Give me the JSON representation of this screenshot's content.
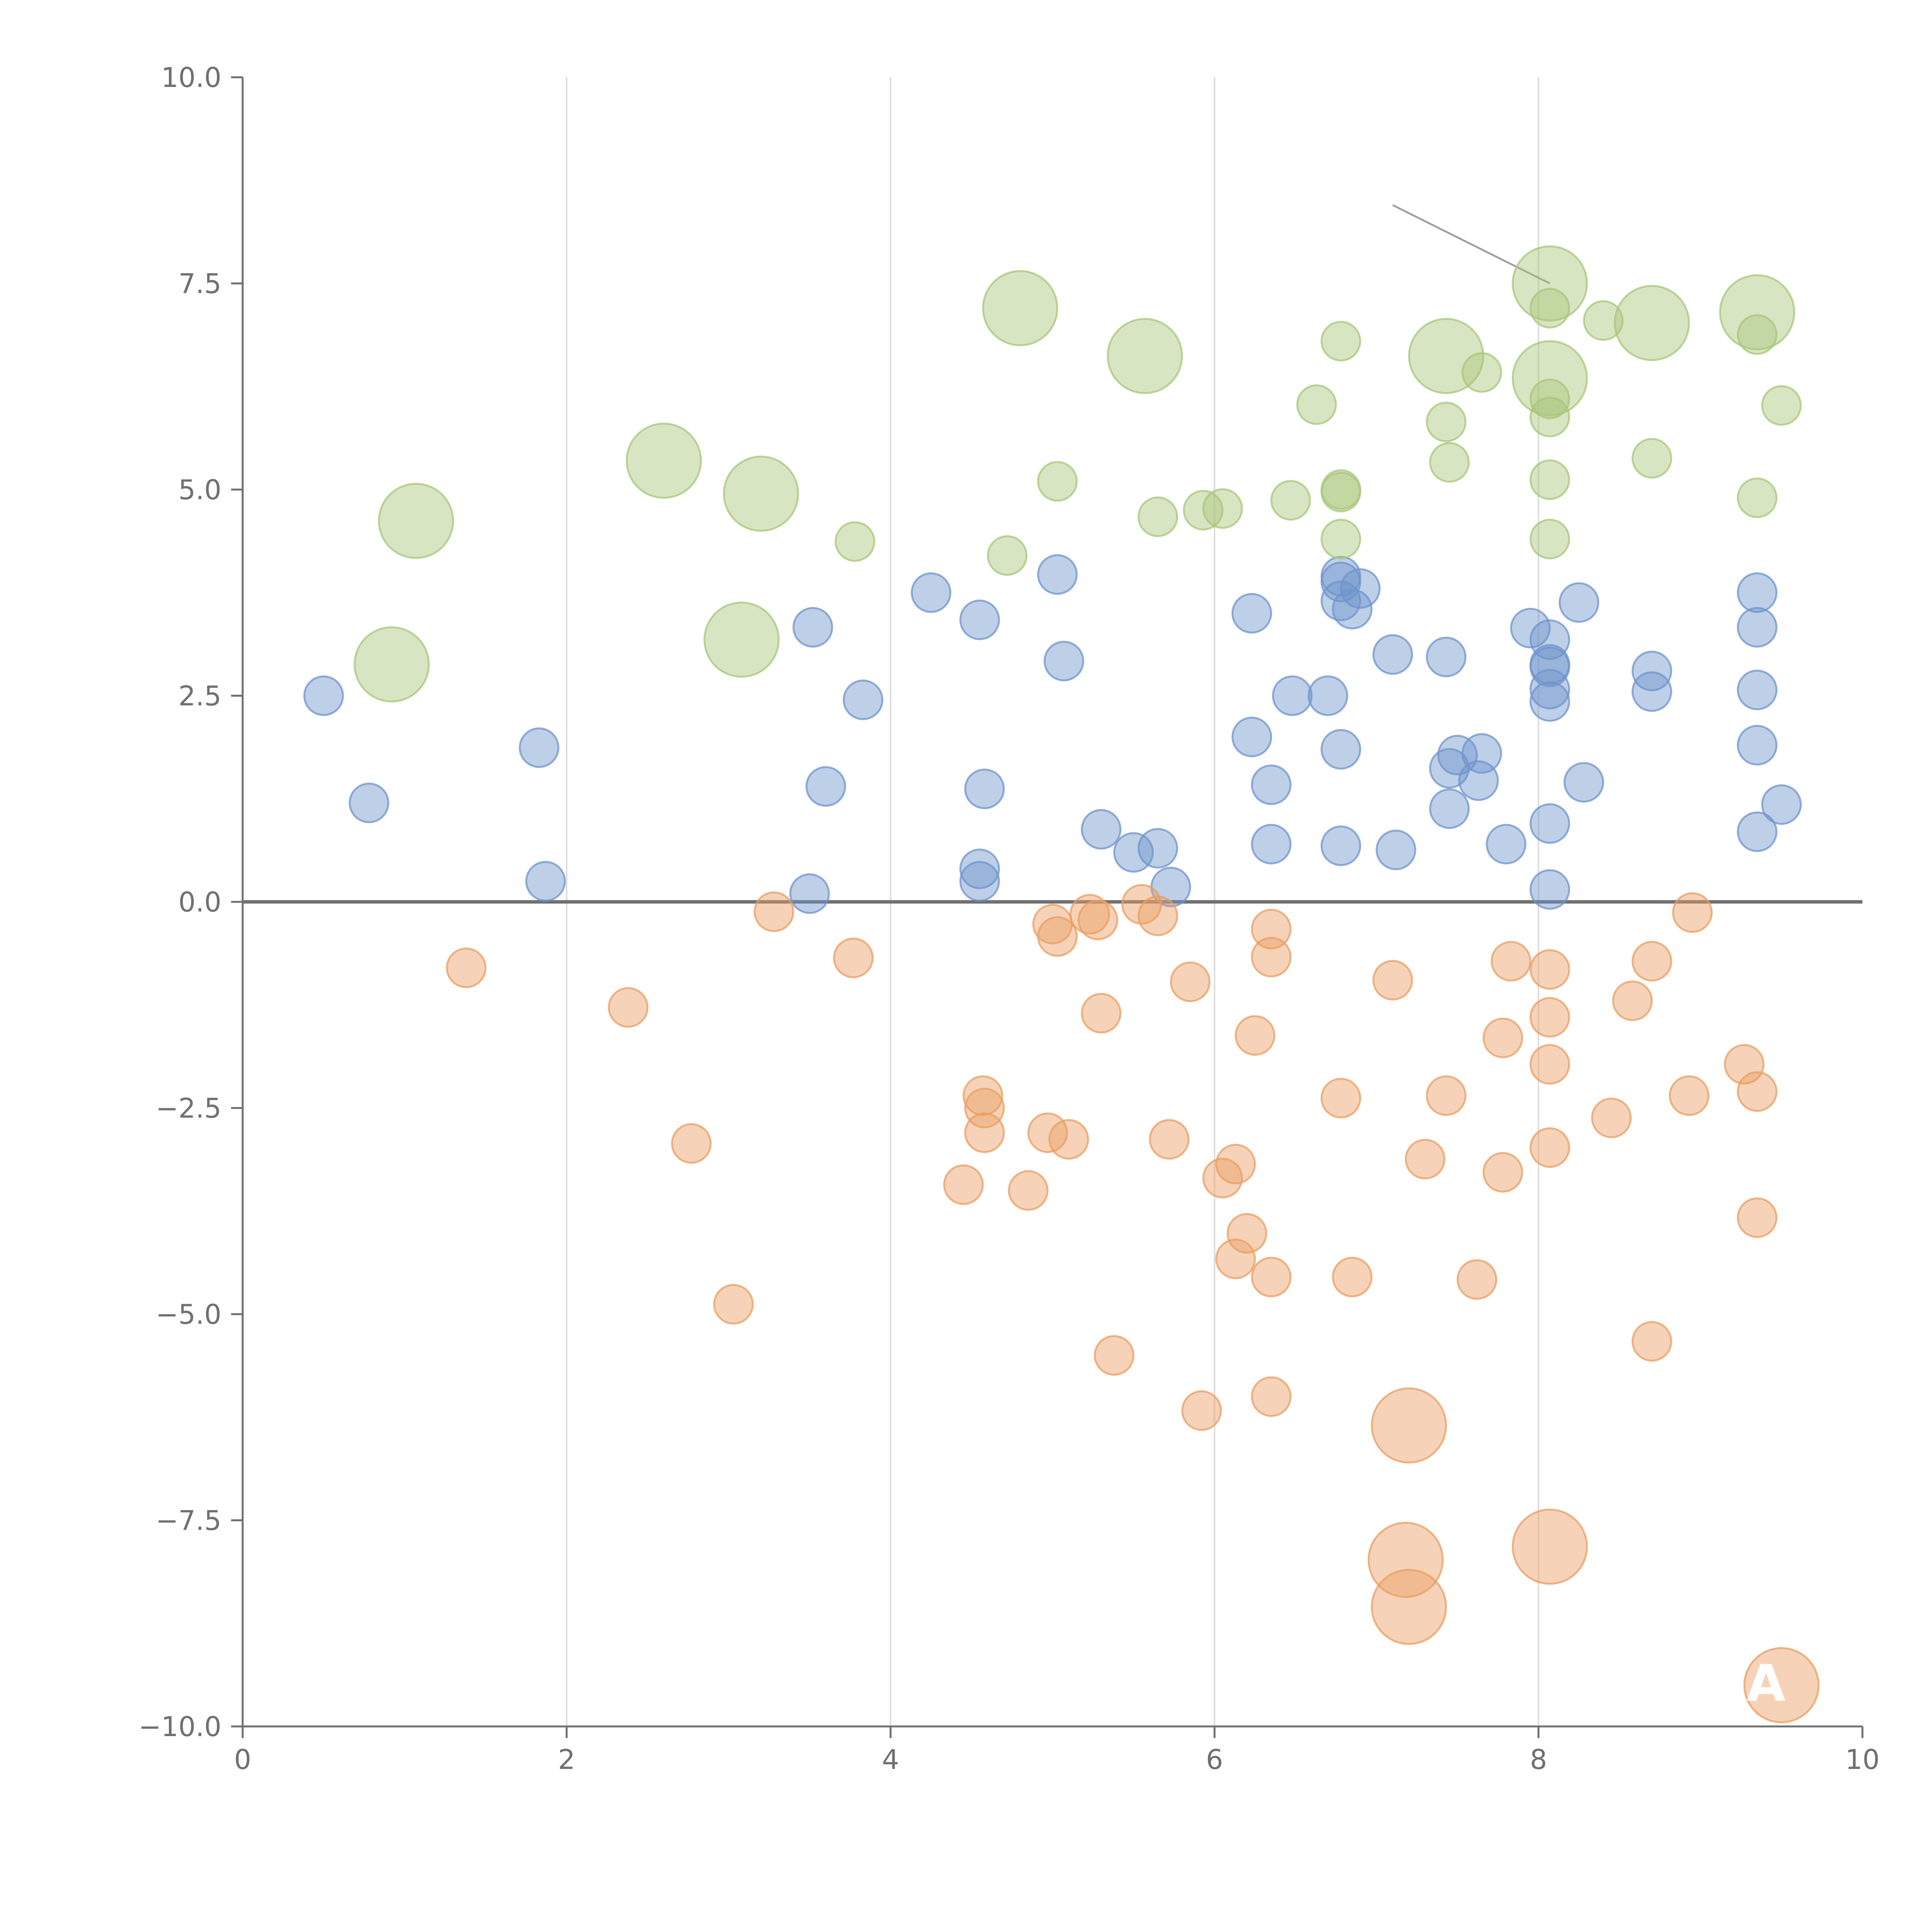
{
  "colors": {
    "positive": "#6e94cc",
    "negative": "#ea9e62",
    "highlight": "#a9c67a"
  },
  "chart_data": {
    "type": "scatter",
    "title": "",
    "xlabel": "",
    "ylabel": "",
    "xlim": [
      0,
      10
    ],
    "ylim": [
      -10,
      10
    ],
    "x_ticks": [
      0,
      2,
      4,
      6,
      8,
      10
    ],
    "x_tick_labels": [
      "0",
      "2",
      "4",
      "6",
      "8",
      "10"
    ],
    "y_ticks": [
      -10,
      -7.5,
      -5,
      -2.5,
      0,
      2.5,
      5,
      7.5,
      10
    ],
    "y_tick_labels": [
      "−10.0",
      "−7.5",
      "−5.0",
      "−2.5",
      "0.0",
      "2.5",
      "5.0",
      "7.5",
      "10.0"
    ],
    "vertical_grid": true,
    "zero_line": true,
    "series": [
      {
        "name": "positive",
        "color_key": "positive",
        "points": [
          [
            0.5,
            2.5
          ],
          [
            0.78,
            1.2
          ],
          [
            1.83,
            1.87
          ],
          [
            1.87,
            0.25
          ],
          [
            3.5,
            0.1
          ],
          [
            3.52,
            3.33
          ],
          [
            3.6,
            1.4
          ],
          [
            3.83,
            2.45
          ],
          [
            4.25,
            3.75
          ],
          [
            4.55,
            3.42
          ],
          [
            4.55,
            0.4
          ],
          [
            4.55,
            0.25
          ],
          [
            4.58,
            1.37
          ],
          [
            5.03,
            3.97
          ],
          [
            5.07,
            2.92
          ],
          [
            5.3,
            0.88
          ],
          [
            5.5,
            0.6
          ],
          [
            5.65,
            0.65
          ],
          [
            5.73,
            0.18
          ],
          [
            6.23,
            3.5
          ],
          [
            6.23,
            2.0
          ],
          [
            6.35,
            1.42
          ],
          [
            6.35,
            0.7
          ],
          [
            6.48,
            2.5
          ],
          [
            6.7,
            2.5
          ],
          [
            6.78,
            3.95
          ],
          [
            6.78,
            3.88
          ],
          [
            6.78,
            3.65
          ],
          [
            6.78,
            1.85
          ],
          [
            6.78,
            0.68
          ],
          [
            6.85,
            3.55
          ],
          [
            6.9,
            3.8
          ],
          [
            7.1,
            3.0
          ],
          [
            7.12,
            0.63
          ],
          [
            7.43,
            2.97
          ],
          [
            7.45,
            1.62
          ],
          [
            7.45,
            1.13
          ],
          [
            7.5,
            1.78
          ],
          [
            7.63,
            1.47
          ],
          [
            7.65,
            1.8
          ],
          [
            7.8,
            0.7
          ],
          [
            7.95,
            3.32
          ],
          [
            8.07,
            3.18
          ],
          [
            8.07,
            2.88
          ],
          [
            8.07,
            2.85
          ],
          [
            8.07,
            2.58
          ],
          [
            8.07,
            2.43
          ],
          [
            8.07,
            0.95
          ],
          [
            8.07,
            0.15
          ],
          [
            8.25,
            3.63
          ],
          [
            8.28,
            1.45
          ],
          [
            8.7,
            2.8
          ],
          [
            8.7,
            2.55
          ],
          [
            9.35,
            3.75
          ],
          [
            9.35,
            3.33
          ],
          [
            9.35,
            2.57
          ],
          [
            9.35,
            1.9
          ],
          [
            9.35,
            0.85
          ],
          [
            9.5,
            1.18
          ]
        ]
      },
      {
        "name": "negative",
        "color_key": "negative",
        "points": [
          [
            1.38,
            -0.8
          ],
          [
            2.38,
            -1.28
          ],
          [
            2.77,
            -2.93
          ],
          [
            3.03,
            -4.88
          ],
          [
            3.28,
            -0.12
          ],
          [
            3.77,
            -0.68
          ],
          [
            4.45,
            -3.43
          ],
          [
            4.57,
            -2.35
          ],
          [
            4.58,
            -2.5
          ],
          [
            4.58,
            -2.8
          ],
          [
            4.85,
            -3.5
          ],
          [
            4.97,
            -2.8
          ],
          [
            5.0,
            -0.27
          ],
          [
            5.03,
            -0.42
          ],
          [
            5.1,
            -2.88
          ],
          [
            5.23,
            -0.15
          ],
          [
            5.28,
            -0.22
          ],
          [
            5.3,
            -1.35
          ],
          [
            5.38,
            -5.5
          ],
          [
            5.55,
            -0.03
          ],
          [
            5.65,
            -0.17
          ],
          [
            5.72,
            -2.88
          ],
          [
            5.85,
            -0.97
          ],
          [
            5.92,
            -6.17
          ],
          [
            6.05,
            -3.35
          ],
          [
            6.13,
            -3.18
          ],
          [
            6.13,
            -4.33
          ],
          [
            6.2,
            -4.02
          ],
          [
            6.25,
            -1.62
          ],
          [
            6.35,
            -0.33
          ],
          [
            6.35,
            -0.67
          ],
          [
            6.35,
            -4.55
          ],
          [
            6.35,
            -6.0
          ],
          [
            6.78,
            -2.38
          ],
          [
            6.85,
            -4.55
          ],
          [
            7.1,
            -0.95
          ],
          [
            7.3,
            -3.12
          ],
          [
            7.43,
            -2.35
          ],
          [
            7.62,
            -4.58
          ],
          [
            7.78,
            -3.28
          ],
          [
            7.78,
            -1.65
          ],
          [
            7.83,
            -0.72
          ],
          [
            8.07,
            -0.82
          ],
          [
            8.07,
            -1.4
          ],
          [
            8.07,
            -1.97
          ],
          [
            8.07,
            -2.98
          ],
          [
            8.45,
            -2.62
          ],
          [
            8.58,
            -1.2
          ],
          [
            8.7,
            -0.72
          ],
          [
            8.7,
            -5.33
          ],
          [
            8.93,
            -2.35
          ],
          [
            8.95,
            -0.13
          ],
          [
            9.27,
            -1.97
          ],
          [
            9.35,
            -2.3
          ],
          [
            9.35,
            -3.83
          ]
        ]
      },
      {
        "name": "highlight",
        "color_key": "highlight",
        "points": [
          [
            3.78,
            4.37
          ],
          [
            4.72,
            4.2
          ],
          [
            5.03,
            5.1
          ],
          [
            5.65,
            4.67
          ],
          [
            5.93,
            4.75
          ],
          [
            6.05,
            4.77
          ],
          [
            6.47,
            4.87
          ],
          [
            6.63,
            6.03
          ],
          [
            6.78,
            6.8
          ],
          [
            6.78,
            5.0
          ],
          [
            6.78,
            4.97
          ],
          [
            6.78,
            4.4
          ],
          [
            7.43,
            5.82
          ],
          [
            7.45,
            5.33
          ],
          [
            7.65,
            6.42
          ],
          [
            8.07,
            7.2
          ],
          [
            8.07,
            6.1
          ],
          [
            8.07,
            5.88
          ],
          [
            8.07,
            5.12
          ],
          [
            8.07,
            4.4
          ],
          [
            8.4,
            7.05
          ],
          [
            8.7,
            5.38
          ],
          [
            9.35,
            6.88
          ],
          [
            9.35,
            4.9
          ],
          [
            9.5,
            6.02
          ]
        ]
      }
    ],
    "large_bubbles": [
      {
        "x": 0.92,
        "y": 2.88,
        "color_key": "highlight",
        "label": ""
      },
      {
        "x": 1.07,
        "y": 4.62,
        "color_key": "highlight",
        "label": ""
      },
      {
        "x": 2.6,
        "y": 5.35,
        "color_key": "highlight",
        "label": ""
      },
      {
        "x": 3.08,
        "y": 3.18,
        "color_key": "highlight",
        "label": ""
      },
      {
        "x": 3.2,
        "y": 4.95,
        "color_key": "highlight",
        "label": ""
      },
      {
        "x": 4.8,
        "y": 7.2,
        "color_key": "highlight",
        "label": ""
      },
      {
        "x": 5.57,
        "y": 6.62,
        "color_key": "highlight",
        "label": ""
      },
      {
        "x": 7.43,
        "y": 6.62,
        "color_key": "highlight",
        "label": ""
      },
      {
        "x": 8.07,
        "y": 7.5,
        "color_key": "highlight",
        "label": ""
      },
      {
        "x": 8.07,
        "y": 6.35,
        "color_key": "highlight",
        "label": ""
      },
      {
        "x": 8.7,
        "y": 7.02,
        "color_key": "highlight",
        "label": ""
      },
      {
        "x": 9.35,
        "y": 7.15,
        "color_key": "highlight",
        "label": ""
      },
      {
        "x": 7.2,
        "y": -6.35,
        "color_key": "negative",
        "label": ""
      },
      {
        "x": 7.18,
        "y": -7.98,
        "color_key": "negative",
        "label": ""
      },
      {
        "x": 8.07,
        "y": -7.82,
        "color_key": "negative",
        "label": ""
      },
      {
        "x": 7.2,
        "y": -8.55,
        "color_key": "negative",
        "label": ""
      },
      {
        "x": 9.5,
        "y": -9.5,
        "color_key": "negative",
        "label": "A"
      }
    ]
  }
}
